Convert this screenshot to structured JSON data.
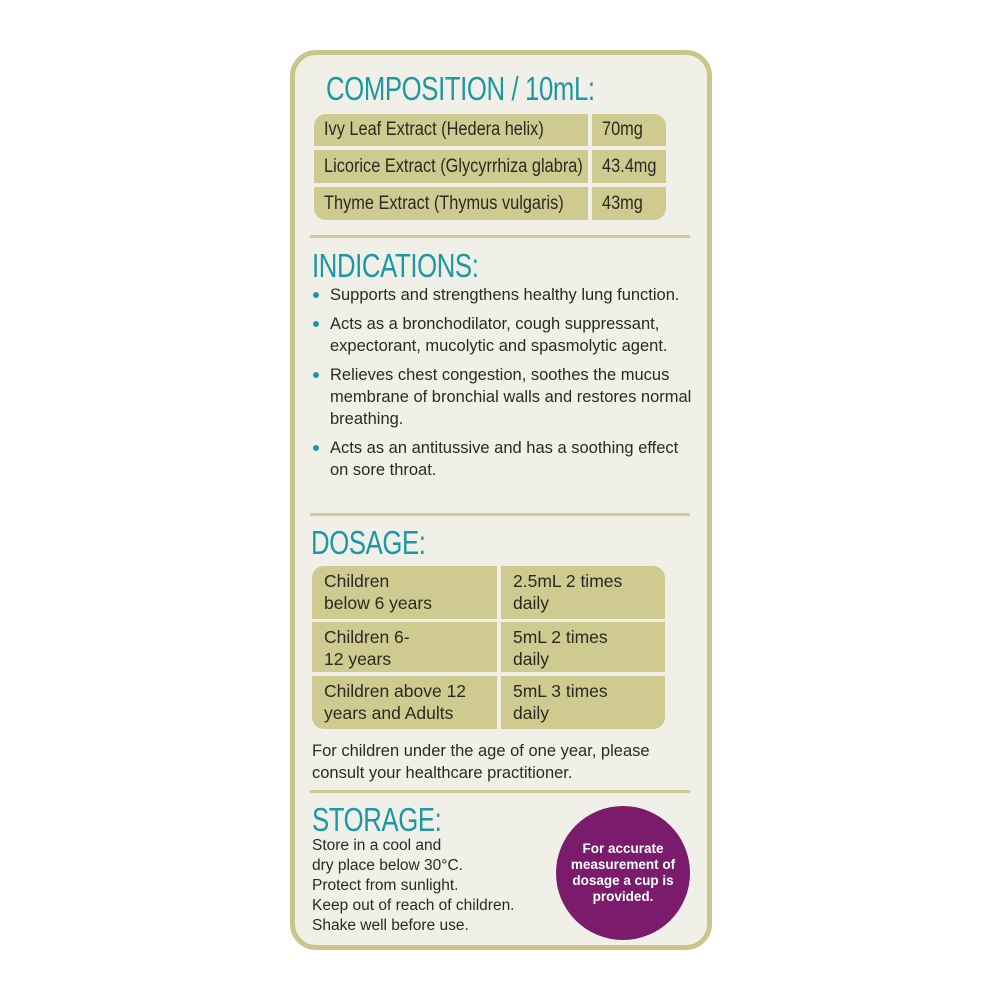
{
  "composition": {
    "title": "COMPOSITION / 10mL:",
    "rows": [
      {
        "name": "Ivy Leaf Extract (Hedera helix)",
        "amount": "70mg"
      },
      {
        "name": "Licorice Extract (Glycyrrhiza glabra)",
        "amount": "43.4mg"
      },
      {
        "name": "Thyme Extract (Thymus vulgaris)",
        "amount": "43mg"
      }
    ]
  },
  "indications": {
    "title": "INDICATIONS:",
    "items": [
      "Supports and strengthens healthy lung function.",
      "Acts as a bronchodilator, cough suppressant, expectorant, mucolytic and spasmolytic agent.",
      "Relieves chest congestion, soothes the mucus membrane of bronchial walls and restores normal breathing.",
      "Acts as an antitussive and has a soothing effect on sore throat."
    ]
  },
  "dosage": {
    "title": "DOSAGE:",
    "rows": [
      {
        "group": "Children below 6 years",
        "dose": "2.5mL 2 times daily"
      },
      {
        "group": "Children 6-12 years",
        "dose": "5mL 2 times daily"
      },
      {
        "group": "Children above 12 years and Adults",
        "dose": "5mL 3 times daily"
      }
    ],
    "note": "For children under the age of one year, please consult your healthcare practitioner."
  },
  "storage": {
    "title": "STORAGE:",
    "lines": [
      "Store in a cool and",
      "dry place below 30°C.",
      "Protect from sunlight.",
      "Keep out of reach of children.",
      "Shake well before use."
    ]
  },
  "badge": "For accurate measurement of dosage a cup is provided.",
  "colors": {
    "accent": "#1b98a4",
    "table": "#cfca8f",
    "badge": "#7a1b6b",
    "border": "#c9c68c"
  }
}
